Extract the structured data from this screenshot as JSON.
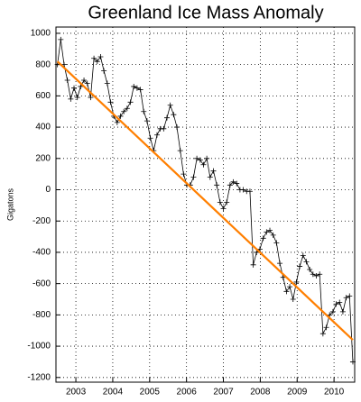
{
  "chart_data": {
    "type": "line",
    "title": "Greenland Ice Mass Anomaly",
    "y_label": "Gigatons",
    "xlim": [
      2002.96,
      2011.06
    ],
    "ylim": [
      -1230,
      1040
    ],
    "xticks": [
      {
        "value": 2003.5,
        "label": "2003"
      },
      {
        "value": 2004.5,
        "label": "2004"
      },
      {
        "value": 2005.5,
        "label": "2005"
      },
      {
        "value": 2006.5,
        "label": "2006"
      },
      {
        "value": 2007.5,
        "label": "2007"
      },
      {
        "value": 2008.5,
        "label": "2008"
      },
      {
        "value": 2009.5,
        "label": "2009"
      },
      {
        "value": 2010.5,
        "label": "2010"
      }
    ],
    "yticks": [
      -1200,
      -1000,
      -800,
      -600,
      -400,
      -200,
      0,
      200,
      400,
      600,
      800,
      1000
    ],
    "grid": true,
    "series": [
      {
        "color": "#000000",
        "markers": true,
        "x": [
          2003.0,
          2003.09,
          2003.18,
          2003.27,
          2003.36,
          2003.45,
          2003.54,
          2003.63,
          2003.72,
          2003.81,
          2003.9,
          2003.99,
          2004.08,
          2004.17,
          2004.26,
          2004.35,
          2004.44,
          2004.53,
          2004.62,
          2004.71,
          2004.8,
          2004.89,
          2004.98,
          2005.07,
          2005.16,
          2005.25,
          2005.34,
          2005.43,
          2005.52,
          2005.61,
          2005.7,
          2005.79,
          2005.88,
          2005.97,
          2006.06,
          2006.15,
          2006.24,
          2006.33,
          2006.42,
          2006.51,
          2006.6,
          2006.69,
          2006.78,
          2006.87,
          2006.96,
          2007.05,
          2007.14,
          2007.23,
          2007.32,
          2007.41,
          2007.5,
          2007.59,
          2007.68,
          2007.77,
          2007.86,
          2007.95,
          2008.04,
          2008.13,
          2008.22,
          2008.31,
          2008.4,
          2008.49,
          2008.58,
          2008.67,
          2008.76,
          2008.85,
          2008.94,
          2009.03,
          2009.12,
          2009.21,
          2009.3,
          2009.39,
          2009.48,
          2009.57,
          2009.66,
          2009.75,
          2009.84,
          2009.93,
          2010.02,
          2010.11,
          2010.2,
          2010.29,
          2010.38,
          2010.47,
          2010.56,
          2010.65,
          2010.74,
          2010.83,
          2010.92,
          2011.01
        ],
        "values": [
          800,
          960,
          800,
          700,
          580,
          650,
          590,
          660,
          700,
          680,
          590,
          840,
          820,
          850,
          760,
          680,
          560,
          470,
          430,
          470,
          500,
          520,
          560,
          660,
          650,
          640,
          500,
          440,
          330,
          250,
          350,
          390,
          390,
          460,
          540,
          480,
          400,
          250,
          100,
          30,
          30,
          80,
          200,
          190,
          160,
          200,
          80,
          120,
          30,
          -80,
          -120,
          -80,
          30,
          50,
          40,
          0,
          0,
          -10,
          -10,
          -480,
          -400,
          -380,
          -310,
          -270,
          -260,
          -290,
          -340,
          -470,
          -560,
          -650,
          -620,
          -700,
          -590,
          -490,
          -420,
          -460,
          -510,
          -540,
          -550,
          -540,
          -920,
          -880,
          -800,
          -780,
          -730,
          -720,
          -780,
          -690,
          -680,
          -1100
        ]
      },
      {
        "color": "#ff7f00",
        "markers": false,
        "x": [
          2003.0,
          2011.01
        ],
        "values": [
          820,
          -960
        ]
      }
    ]
  }
}
